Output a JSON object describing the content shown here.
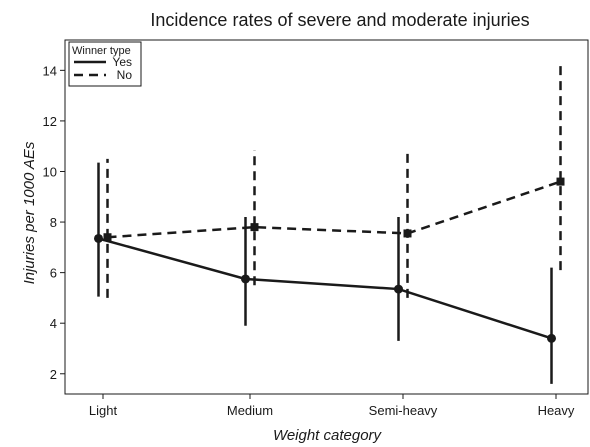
{
  "chart_data": {
    "type": "line",
    "title": "Incidence rates of severe and moderate injuries",
    "xlabel": "Weight category",
    "ylabel": "Injuries per 1000 AEs",
    "categories": [
      "Light",
      "Medium",
      "Semi-heavy",
      "Heavy"
    ],
    "yticks": [
      2,
      4,
      6,
      8,
      10,
      12,
      14
    ],
    "ylim": [
      1.2,
      15.2
    ],
    "grid": false,
    "legend": {
      "title": "Winner type",
      "position": "top-left"
    },
    "series": [
      {
        "name": "Yes",
        "style": "solid",
        "marker": "circle",
        "values": [
          7.35,
          5.75,
          5.35,
          3.4
        ],
        "ci_low": [
          5.05,
          3.9,
          3.3,
          1.6
        ],
        "ci_high": [
          10.35,
          8.2,
          8.2,
          6.2
        ]
      },
      {
        "name": "No",
        "style": "dashed",
        "marker": "square",
        "values": [
          7.4,
          7.8,
          7.55,
          9.6
        ],
        "ci_low": [
          5.0,
          5.5,
          5.0,
          6.1
        ],
        "ci_high": [
          10.5,
          10.85,
          10.7,
          14.25
        ]
      }
    ]
  },
  "colors": {
    "line": "#1a1a1a",
    "background": "#ffffff"
  }
}
